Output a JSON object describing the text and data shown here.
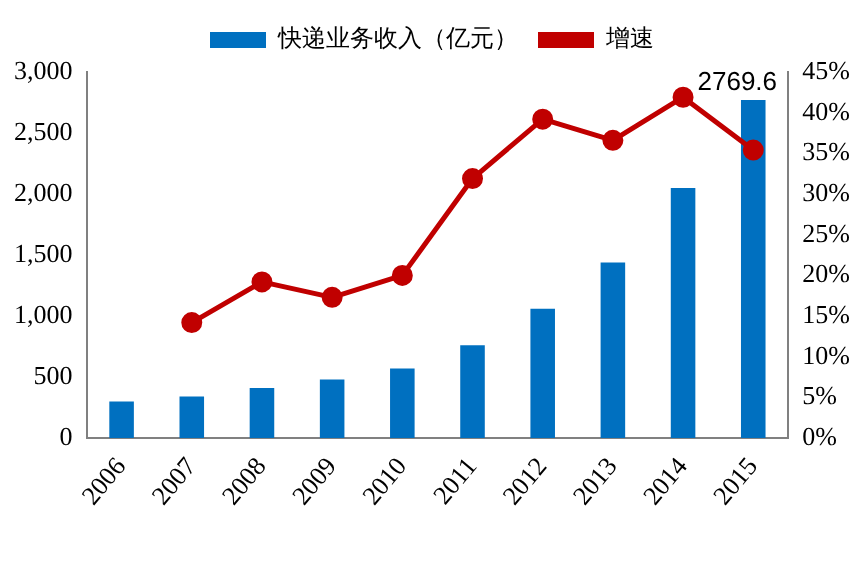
{
  "chart_data": {
    "type": "bar",
    "categories": [
      "2006",
      "2007",
      "2008",
      "2009",
      "2010",
      "2011",
      "2012",
      "2013",
      "2014",
      "2015"
    ],
    "series": [
      {
        "name": "快递业务收入（亿元）",
        "color": "#0070c0",
        "values": [
          300,
          340,
          410,
          480,
          570,
          760,
          1060,
          1440,
          2050,
          2769.6
        ],
        "value_labels": [
          null,
          null,
          null,
          null,
          null,
          null,
          null,
          null,
          null,
          "2769.6"
        ]
      },
      {
        "name": "增速",
        "type": "line",
        "axis": "y2",
        "color": "#c00000",
        "values": [
          null,
          14.2,
          19.2,
          17.3,
          20,
          31.9,
          39.2,
          36.6,
          41.9,
          35.4
        ]
      }
    ],
    "ylim": [
      0,
      3000
    ],
    "yticks": [
      {
        "value": 0,
        "label": "0"
      },
      {
        "value": 500,
        "label": "500"
      },
      {
        "value": 1000,
        "label": "1,000"
      },
      {
        "value": 1500,
        "label": "1,500"
      },
      {
        "value": 2000,
        "label": "2,000"
      },
      {
        "value": 2500,
        "label": "2,500"
      },
      {
        "value": 3000,
        "label": "3,000"
      }
    ],
    "y2lim": [
      0,
      45
    ],
    "y2ticks": [
      {
        "value": 0,
        "label": "0%"
      },
      {
        "value": 5,
        "label": "5%"
      },
      {
        "value": 10,
        "label": "10%"
      },
      {
        "value": 15,
        "label": "15%"
      },
      {
        "value": 20,
        "label": "20%"
      },
      {
        "value": 25,
        "label": "25%"
      },
      {
        "value": 30,
        "label": "30%"
      },
      {
        "value": 35,
        "label": "35%"
      },
      {
        "value": 40,
        "label": "40%"
      },
      {
        "value": 45,
        "label": "45%"
      }
    ],
    "grid": false,
    "legend": "top",
    "marker": "circle",
    "line_style": "solid"
  }
}
